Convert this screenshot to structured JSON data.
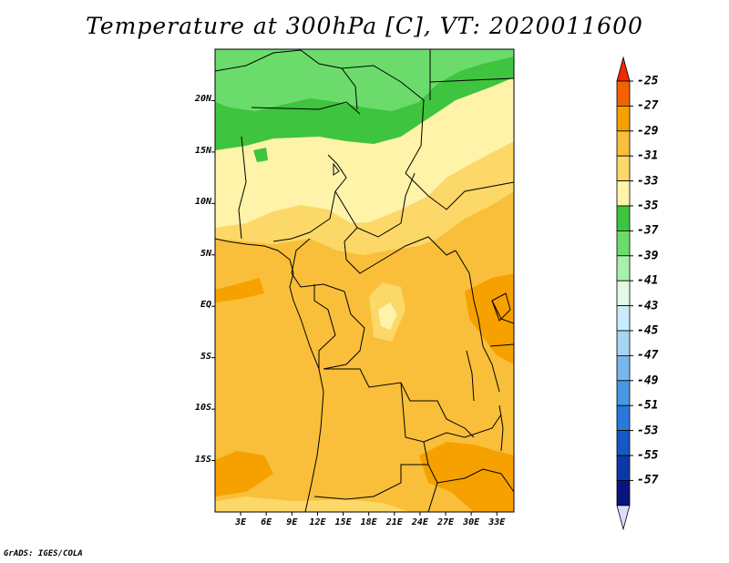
{
  "title": "Temperature at 300hPa [C], VT: 2020011600",
  "credit": "GrADS: IGES/COLA",
  "map": {
    "lat_labels": [
      "20N",
      "15N",
      "10N",
      "5N",
      "EQ",
      "5S",
      "10S",
      "15S"
    ],
    "lat_values": [
      20,
      15,
      10,
      5,
      0,
      -5,
      -10,
      -15
    ],
    "lon_labels": [
      "3E",
      "6E",
      "9E",
      "12E",
      "15E",
      "18E",
      "21E",
      "24E",
      "27E",
      "30E",
      "33E"
    ],
    "lon_values": [
      3,
      6,
      9,
      12,
      15,
      18,
      21,
      24,
      27,
      30,
      33
    ],
    "lon_range": [
      0,
      35
    ],
    "lat_range": [
      -20,
      25
    ]
  },
  "colorbar": {
    "labels": [
      "-25",
      "-27",
      "-29",
      "-31",
      "-33",
      "-35",
      "-37",
      "-39",
      "-41",
      "-43",
      "-45",
      "-47",
      "-49",
      "-51",
      "-53",
      "-55",
      "-57"
    ],
    "colors": [
      "#f46200",
      "#f6a100",
      "#f9bf3a",
      "#fbd868",
      "#fef3a8",
      "#3ec43e",
      "#6bdc6b",
      "#aaf0aa",
      "#e4f8e4",
      "#c8ecfa",
      "#a6d4f2",
      "#78b6ec",
      "#4898e2",
      "#2878de",
      "#1558c6",
      "#0c38a8",
      "#0a147e"
    ],
    "top_arrow_color": "#f02a00",
    "bottom_arrow_color": "#dcdcff"
  }
}
